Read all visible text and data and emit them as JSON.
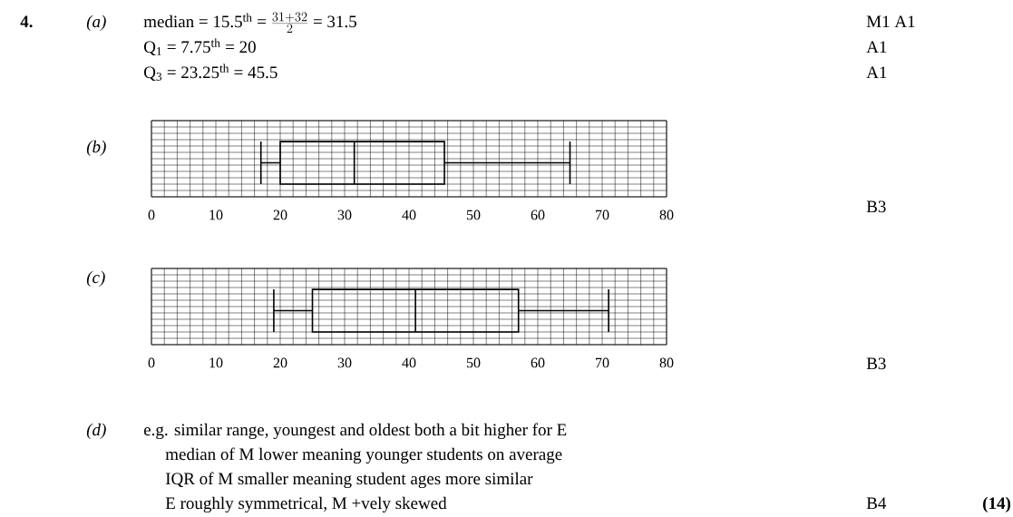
{
  "chart_data": [
    {
      "type": "box",
      "orientation": "horizontal",
      "categories": [
        null
      ],
      "xlim": [
        0,
        80
      ],
      "xticks": [
        0,
        10,
        20,
        30,
        40,
        50,
        60,
        70,
        80
      ],
      "grid": true,
      "color": "#000000",
      "boxes": [
        {
          "low": 17,
          "q1": 20,
          "median": 31.5,
          "q3": 45.5,
          "high": 65
        }
      ],
      "annotations": [
        "4.",
        "(a)",
        "median = 15.5$^{th}$ = ",
        "\\frac{31+32}{2}",
        " = 31.5",
        "M1 A1",
        "Q$_{1}$ = 7.75$^{th}$ = 20",
        "A1",
        "Q$_{3}$ = 23.25$^{th}$ = 45.5",
        "A1",
        "(b)",
        "B3"
      ]
    },
    {
      "type": "box",
      "orientation": "horizontal",
      "categories": [
        null
      ],
      "xlim": [
        0,
        80
      ],
      "xticks": [
        0,
        10,
        20,
        30,
        40,
        50,
        60,
        70,
        80
      ],
      "grid": true,
      "color": "#000000",
      "boxes": [
        {
          "low": 19,
          "q1": 25,
          "median": 41,
          "q3": 57,
          "high": 71
        }
      ],
      "annotations": [
        "(c)",
        "B3",
        "(d)",
        "e.g. similar range, youngest and oldest both a bit higher for E",
        "median of M lower meaning younger students on average",
        "IQR of M smaller meaning student ages more similar",
        "E roughly symmetrical, M +vely skewed",
        "B4",
        "(14)"
      ]
    }
  ]
}
